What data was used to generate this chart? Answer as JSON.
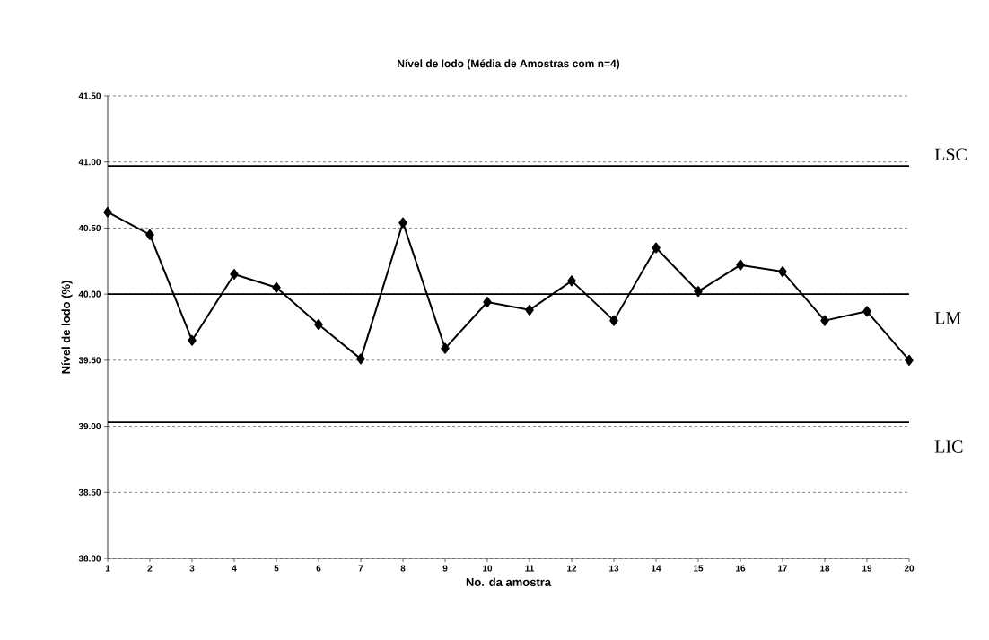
{
  "chart_data": {
    "type": "line",
    "title": "Nível de lodo (Média de Amostras com n=4)",
    "xlabel": "No. da amostra",
    "ylabel": "Nível de lodo (%)",
    "categories": [
      "1",
      "2",
      "3",
      "4",
      "5",
      "6",
      "7",
      "8",
      "9",
      "10",
      "11",
      "12",
      "13",
      "14",
      "15",
      "16",
      "17",
      "18",
      "19",
      "20"
    ],
    "series": [
      {
        "color": "#000000",
        "values": [
          40.62,
          40.45,
          39.65,
          40.15,
          40.05,
          39.77,
          39.51,
          40.54,
          39.59,
          39.94,
          39.88,
          40.1,
          39.8,
          40.35,
          40.02,
          40.22,
          40.17,
          39.8,
          39.87,
          39.5
        ]
      }
    ],
    "ylim": [
      38.0,
      41.5
    ],
    "yticks": [
      {
        "value": 38.0,
        "label": "38.00"
      },
      {
        "value": 38.5,
        "label": "38.50"
      },
      {
        "value": 39.0,
        "label": "39.00"
      },
      {
        "value": 39.5,
        "label": "39.50"
      },
      {
        "value": 40.0,
        "label": "40.00"
      },
      {
        "value": 40.5,
        "label": "40.50"
      },
      {
        "value": 41.0,
        "label": "41.00"
      },
      {
        "value": 41.5,
        "label": "41.50"
      }
    ],
    "ref_lines": [
      {
        "axis": "y",
        "value": 40.97,
        "label": "LSC",
        "color": "#000000"
      },
      {
        "axis": "y",
        "value": 40.0,
        "label": "LM",
        "color": "#000000"
      },
      {
        "axis": "y",
        "value": 39.03,
        "label": "LIC",
        "color": "#000000"
      }
    ],
    "grid": "y",
    "marker": "diamond",
    "line_style": "solid"
  }
}
